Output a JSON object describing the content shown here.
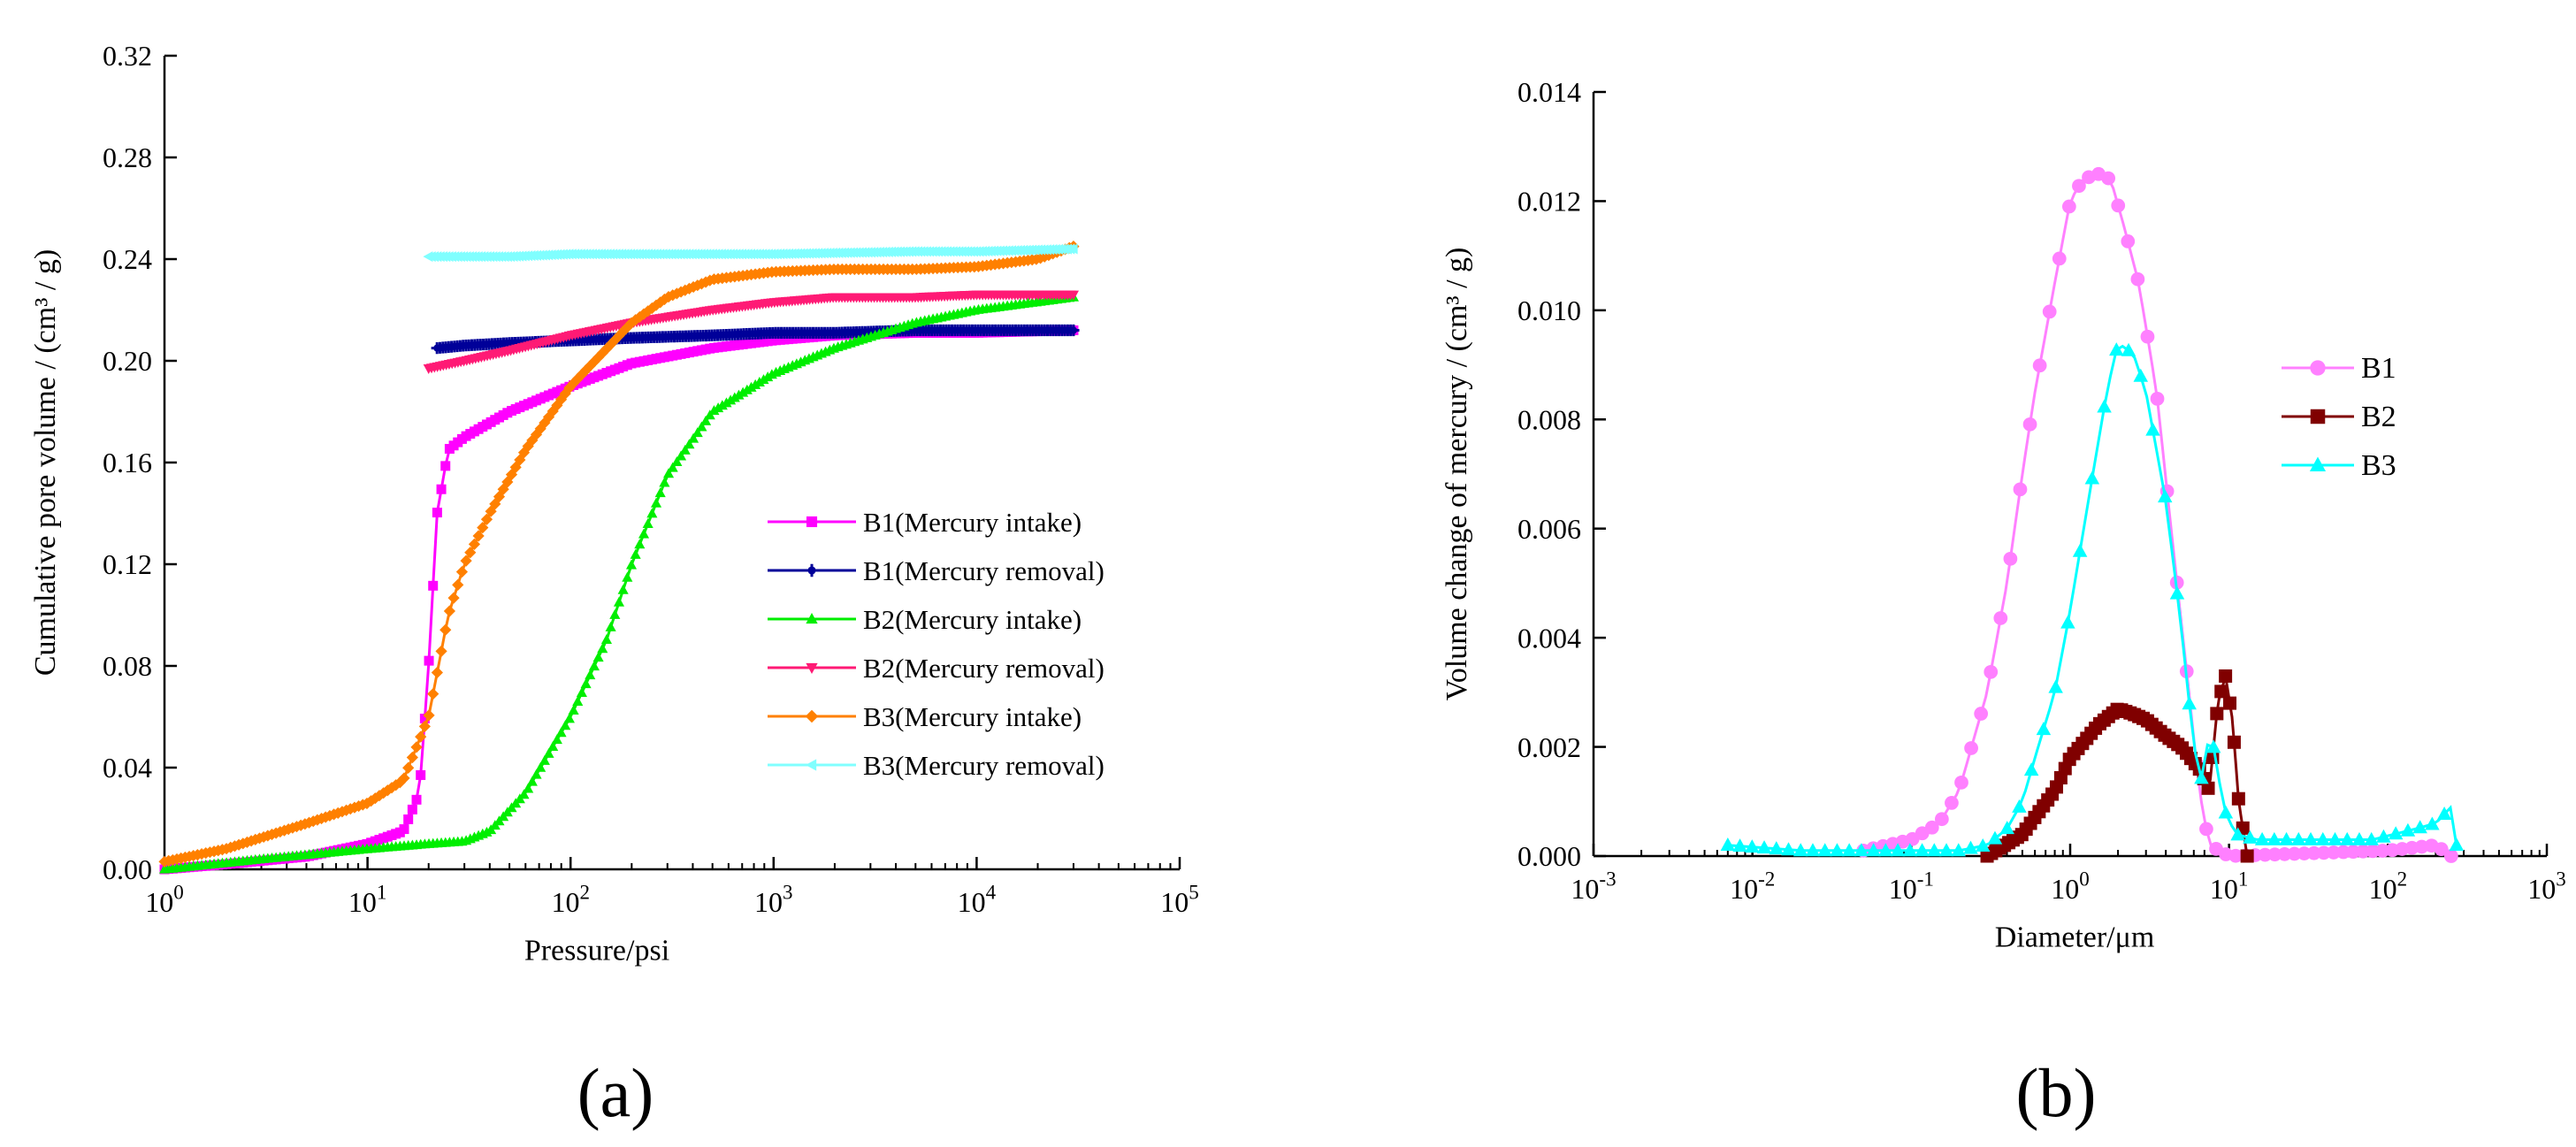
{
  "chart_data": [
    {
      "panel_label": "(a)",
      "type": "scatter",
      "xscale": "log",
      "xlabel": "Pressure/psi",
      "ylabel": "Cumulative pore volume / (cm³ / g)",
      "xlim": [
        1,
        100000
      ],
      "ylim": [
        0,
        0.32
      ],
      "xticks": [
        1,
        10,
        100,
        1000,
        10000,
        100000
      ],
      "xtick_labels": [
        {
          "base": "10",
          "exp": "0"
        },
        {
          "base": "10",
          "exp": "1"
        },
        {
          "base": "10",
          "exp": "2"
        },
        {
          "base": "10",
          "exp": "3"
        },
        {
          "base": "10",
          "exp": "4"
        },
        {
          "base": "10",
          "exp": "5"
        }
      ],
      "yticks": [
        0,
        0.04,
        0.08,
        0.12,
        0.16,
        0.2,
        0.24,
        0.28,
        0.32
      ],
      "ytick_labels": [
        "0.00",
        "0.04",
        "0.08",
        "0.12",
        "0.16",
        "0.20",
        "0.24",
        "0.28",
        "0.32"
      ],
      "legend_position": "lower-right",
      "series": [
        {
          "name": "B1(Mercury intake)",
          "color": "#ff00ff",
          "marker": "square",
          "x": [
            1,
            2,
            5,
            10,
            15,
            18,
            20,
            22,
            25,
            30,
            50,
            100,
            200,
            500,
            1000,
            2000,
            5000,
            10000,
            30000
          ],
          "y": [
            0.0,
            0.002,
            0.005,
            0.01,
            0.015,
            0.03,
            0.08,
            0.14,
            0.165,
            0.17,
            0.18,
            0.19,
            0.199,
            0.205,
            0.208,
            0.21,
            0.211,
            0.211,
            0.212
          ]
        },
        {
          "name": "B1(Mercury removal)",
          "color": "#000099",
          "marker": "cross",
          "x": [
            22,
            30,
            50,
            100,
            200,
            500,
            1000,
            2000,
            5000,
            10000,
            30000
          ],
          "y": [
            0.205,
            0.206,
            0.207,
            0.208,
            0.209,
            0.21,
            0.211,
            0.211,
            0.212,
            0.212,
            0.212
          ]
        },
        {
          "name": "B2(Mercury intake)",
          "color": "#00ee00",
          "marker": "triangle",
          "x": [
            1,
            3,
            10,
            20,
            30,
            40,
            60,
            100,
            150,
            200,
            300,
            500,
            1000,
            2000,
            5000,
            10000,
            30000
          ],
          "y": [
            0.0,
            0.004,
            0.008,
            0.01,
            0.011,
            0.015,
            0.03,
            0.06,
            0.09,
            0.12,
            0.155,
            0.18,
            0.195,
            0.205,
            0.215,
            0.22,
            0.225
          ]
        },
        {
          "name": "B2(Mercury removal)",
          "color": "#ff1a75",
          "marker": "triangle-down",
          "x": [
            20,
            30,
            50,
            100,
            200,
            500,
            1000,
            2000,
            5000,
            10000,
            30000
          ],
          "y": [
            0.197,
            0.2,
            0.204,
            0.21,
            0.215,
            0.22,
            0.223,
            0.225,
            0.225,
            0.226,
            0.226
          ]
        },
        {
          "name": "B3(Mercury intake)",
          "color": "#ff8000",
          "marker": "diamond",
          "x": [
            1,
            2,
            5,
            10,
            15,
            20,
            25,
            30,
            40,
            60,
            100,
            200,
            300,
            500,
            1000,
            2000,
            5000,
            10000,
            20000,
            30000
          ],
          "y": [
            0.003,
            0.008,
            0.018,
            0.026,
            0.035,
            0.06,
            0.1,
            0.12,
            0.14,
            0.165,
            0.19,
            0.215,
            0.225,
            0.232,
            0.235,
            0.236,
            0.236,
            0.237,
            0.24,
            0.245
          ]
        },
        {
          "name": "B3(Mercury removal)",
          "color": "#80ffff",
          "marker": "triangle-left",
          "x": [
            20,
            50,
            100,
            500,
            1000,
            5000,
            10000,
            30000
          ],
          "y": [
            0.241,
            0.241,
            0.242,
            0.242,
            0.242,
            0.243,
            0.243,
            0.244
          ]
        }
      ]
    },
    {
      "panel_label": "(b)",
      "type": "line",
      "xscale": "log",
      "xlabel": "Diameter/μm",
      "ylabel": "Volume change of mercury / (cm³ / g)",
      "xlim": [
        0.001,
        1000
      ],
      "ylim": [
        0,
        0.014
      ],
      "xticks": [
        0.001,
        0.01,
        0.1,
        1,
        10,
        100,
        1000
      ],
      "xtick_labels": [
        {
          "base": "10",
          "exp": "-3"
        },
        {
          "base": "10",
          "exp": "-2"
        },
        {
          "base": "10",
          "exp": "-1"
        },
        {
          "base": "10",
          "exp": "0"
        },
        {
          "base": "10",
          "exp": "1"
        },
        {
          "base": "10",
          "exp": "2"
        },
        {
          "base": "10",
          "exp": "3"
        }
      ],
      "yticks": [
        0,
        0.002,
        0.004,
        0.006,
        0.008,
        0.01,
        0.012,
        0.014
      ],
      "ytick_labels": [
        "0.000",
        "0.002",
        "0.004",
        "0.006",
        "0.008",
        "0.010",
        "0.012",
        "0.014"
      ],
      "legend_position": "right",
      "series": [
        {
          "name": "B1",
          "color": "#ff80ff",
          "marker": "circle",
          "x": [
            0.05,
            0.1,
            0.15,
            0.2,
            0.3,
            0.4,
            0.5,
            0.6,
            0.8,
            1.0,
            1.2,
            1.5,
            1.8,
            2.2,
            2.7,
            3.5,
            4.5,
            5.5,
            6.5,
            7.5,
            10,
            100,
            200,
            250
          ],
          "y": [
            0.0001,
            0.0003,
            0.0006,
            0.0012,
            0.003,
            0.005,
            0.007,
            0.0085,
            0.0105,
            0.012,
            0.0124,
            0.0125,
            0.0124,
            0.0115,
            0.0105,
            0.0085,
            0.0055,
            0.0032,
            0.0012,
            0.0002,
            0.0,
            0.0001,
            0.0002,
            0.0
          ]
        },
        {
          "name": "B2",
          "color": "#800000",
          "marker": "square",
          "x": [
            0.3,
            0.5,
            0.8,
            1.0,
            1.5,
            2.0,
            2.5,
            3.0,
            4.0,
            5.0,
            6.5,
            7.5,
            8.5,
            9.5,
            10.5,
            11.5,
            13
          ],
          "y": [
            0.0,
            0.0004,
            0.0012,
            0.0018,
            0.0024,
            0.0027,
            0.0026,
            0.0025,
            0.0022,
            0.002,
            0.0016,
            0.0012,
            0.0028,
            0.0033,
            0.0025,
            0.001,
            0.0
          ]
        },
        {
          "name": "B3",
          "color": "#00ffff",
          "marker": "triangle",
          "x": [
            0.007,
            0.02,
            0.05,
            0.1,
            0.2,
            0.3,
            0.4,
            0.5,
            0.6,
            0.8,
            1.0,
            1.3,
            1.7,
            2.0,
            2.5,
            3.0,
            4.0,
            5.0,
            6.0,
            7.0,
            7.5,
            8.5,
            9.5,
            11,
            15,
            30,
            80,
            150,
            200,
            250,
            270
          ],
          "y": [
            0.0002,
            0.0001,
            0.0001,
            0.0001,
            0.0001,
            0.0002,
            0.0005,
            0.001,
            0.0018,
            0.003,
            0.0045,
            0.0065,
            0.0085,
            0.0094,
            0.0092,
            0.0085,
            0.0065,
            0.0042,
            0.002,
            0.0012,
            0.0025,
            0.0015,
            0.0008,
            0.0004,
            0.0003,
            0.0003,
            0.0003,
            0.0005,
            0.0006,
            0.0009,
            0.0002
          ]
        }
      ]
    }
  ]
}
